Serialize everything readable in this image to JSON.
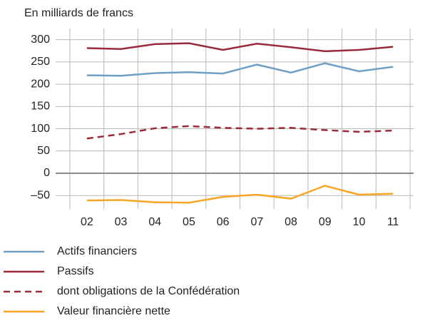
{
  "chart_data": {
    "type": "line",
    "y_label": "En milliards de francs",
    "categories": [
      "02",
      "03",
      "04",
      "05",
      "06",
      "07",
      "08",
      "09",
      "10",
      "11"
    ],
    "series": [
      {
        "name": "Actifs financiers",
        "color": "#6f9fc4",
        "dash": false,
        "values": [
          220,
          219,
          225,
          227,
          224,
          244,
          226,
          247,
          229,
          239
        ]
      },
      {
        "name": "Passifs",
        "color": "#9b2a3a",
        "dash": false,
        "values": [
          281,
          279,
          290,
          292,
          277,
          291,
          283,
          274,
          277,
          284
        ]
      },
      {
        "name": "dont obligations de la Confédération",
        "color": "#9b2a3a",
        "dash": true,
        "values": [
          78,
          88,
          101,
          106,
          102,
          100,
          102,
          97,
          93,
          96
        ]
      },
      {
        "name": "Valeur financière nette",
        "color": "#f5a623",
        "dash": false,
        "values": [
          -61,
          -60,
          -65,
          -66,
          -53,
          -48,
          -57,
          -28,
          -48,
          -46
        ]
      }
    ],
    "ylim": [
      -80,
      325
    ],
    "yticks": [
      {
        "value": -50,
        "label": "–50"
      },
      0,
      50,
      100,
      150,
      200,
      250,
      300
    ],
    "grid": true
  }
}
